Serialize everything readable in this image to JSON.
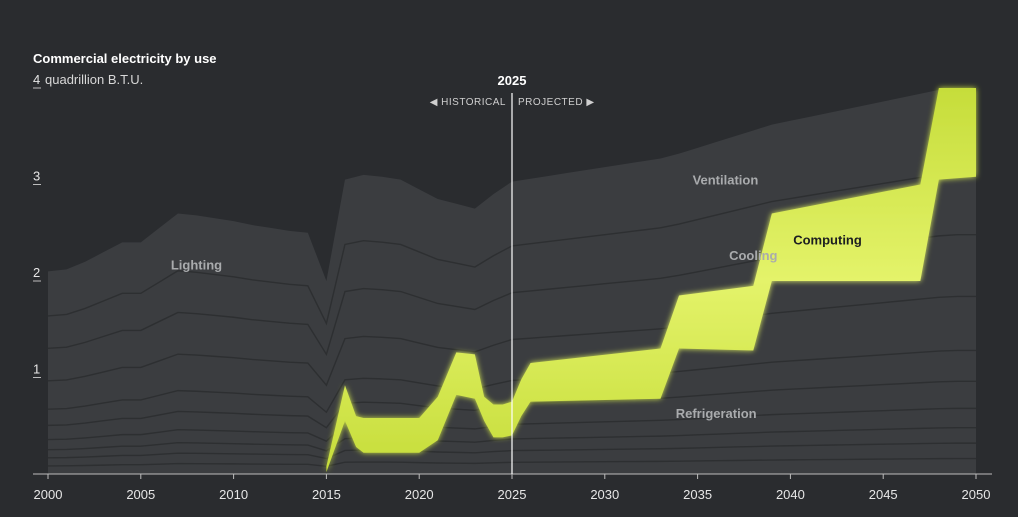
{
  "chart_data": {
    "type": "area",
    "title": "Commercial electricity by use",
    "ylabel": "quadrillion B.T.U.",
    "xlabel": "",
    "xlim": [
      2000,
      2050
    ],
    "ylim": [
      0,
      4
    ],
    "yticks": [
      1,
      2,
      3,
      4
    ],
    "xticks": [
      2000,
      2005,
      2010,
      2015,
      2020,
      2025,
      2030,
      2035,
      2040,
      2045,
      2050
    ],
    "divider": {
      "x": 2025,
      "label": "2025",
      "left_label": "◀ HISTORICAL",
      "right_label": "PROJECTED ▶"
    },
    "area_labels": [
      {
        "text": "Lighting",
        "x": 2008,
        "y": 2.12
      },
      {
        "text": "Ventilation",
        "x": 2036.5,
        "y": 3.0
      },
      {
        "text": "Cooling",
        "x": 2038,
        "y": 2.22
      },
      {
        "text": "Computing",
        "x": 2042,
        "y": 2.38
      },
      {
        "text": "Refrigeration",
        "x": 2036,
        "y": 0.58
      }
    ],
    "highlight_series": "Computing",
    "total": {
      "x": [
        2000,
        2001,
        2002,
        2003,
        2004,
        2005,
        2006,
        2007,
        2008,
        2009,
        2010,
        2011,
        2012,
        2013,
        2014,
        2015,
        2016,
        2017,
        2018,
        2019,
        2020,
        2021,
        2022,
        2023,
        2024,
        2025,
        2026,
        2027,
        2028,
        2029,
        2030,
        2031,
        2032,
        2033,
        2034,
        2035,
        2036,
        2037,
        2038,
        2039,
        2040,
        2041,
        2042,
        2043,
        2044,
        2045,
        2046,
        2047,
        2048,
        2049,
        2050
      ],
      "values": [
        2.1,
        2.12,
        2.2,
        2.3,
        2.4,
        2.4,
        2.55,
        2.7,
        2.68,
        2.65,
        2.62,
        2.58,
        2.55,
        2.52,
        2.5,
        2.0,
        3.05,
        3.1,
        3.08,
        3.05,
        2.95,
        2.85,
        2.8,
        2.75,
        2.9,
        3.03,
        3.06,
        3.09,
        3.12,
        3.15,
        3.18,
        3.21,
        3.24,
        3.27,
        3.32,
        3.38,
        3.44,
        3.5,
        3.56,
        3.62,
        3.66,
        3.7,
        3.74,
        3.78,
        3.82,
        3.86,
        3.9,
        3.94,
        3.98,
        4.0,
        4.0
      ]
    },
    "series": [
      {
        "name": "Computing",
        "x": [
          2015,
          2016,
          2016.6,
          2017,
          2020,
          2021,
          2022,
          2023,
          2023.5,
          2024,
          2024.5,
          2025,
          2025.5,
          2026,
          2033,
          2034,
          2038,
          2039,
          2047,
          2048,
          2050
        ],
        "lower": [
          0.02,
          0.55,
          0.28,
          0.22,
          0.22,
          0.35,
          0.82,
          0.78,
          0.55,
          0.38,
          0.38,
          0.4,
          0.6,
          0.75,
          0.78,
          1.3,
          1.28,
          2.0,
          2.0,
          3.05,
          3.08
        ],
        "upper": [
          0.08,
          0.92,
          0.6,
          0.58,
          0.58,
          0.8,
          1.26,
          1.24,
          0.8,
          0.72,
          0.72,
          0.75,
          0.98,
          1.15,
          1.3,
          1.85,
          1.95,
          2.7,
          3.0,
          4.0,
          4.0
        ]
      }
    ]
  }
}
